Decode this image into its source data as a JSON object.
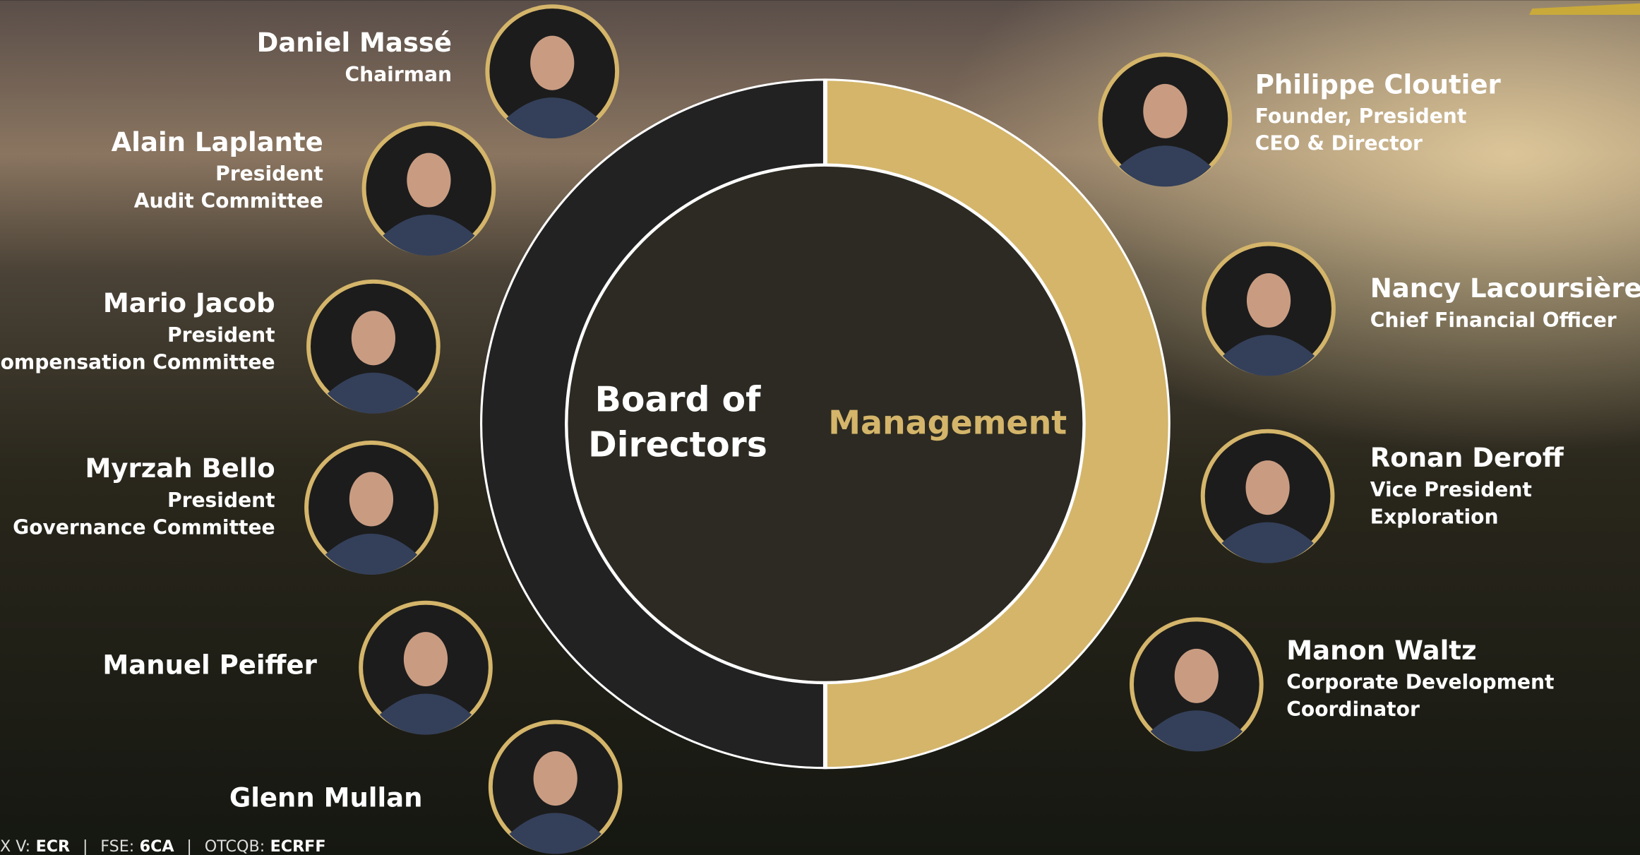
{
  "center": {
    "left": [
      "Board of",
      "Directors"
    ],
    "right": "Management"
  },
  "board": [
    {
      "name": "Daniel Massé",
      "titles": [
        "Chairman"
      ]
    },
    {
      "name": "Alain Laplante",
      "titles": [
        "President",
        "Audit Committee"
      ]
    },
    {
      "name": "Mario Jacob",
      "titles": [
        "President",
        "Compensation Committee"
      ]
    },
    {
      "name": "Myrzah Bello",
      "titles": [
        "President",
        "Governance Committee"
      ]
    },
    {
      "name": "Manuel Peiffer",
      "titles": []
    },
    {
      "name": "Glenn Mullan",
      "titles": []
    }
  ],
  "management": [
    {
      "name": "Philippe Cloutier",
      "titles": [
        "Founder, President",
        "CEO & Director"
      ]
    },
    {
      "name": "Nancy Lacoursière",
      "titles": [
        "Chief Financial Officer"
      ]
    },
    {
      "name": "Ronan Deroff",
      "titles": [
        "Vice President",
        " Exploration"
      ]
    },
    {
      "name": "Manon Waltz",
      "titles": [
        "Corporate Development",
        "Coordinator"
      ]
    }
  ],
  "footer": [
    {
      "label": "X V:",
      "value": "ECR"
    },
    {
      "label": "FSE:",
      "value": "6CA"
    },
    {
      "label": "OTCQB:",
      "value": "ECRFF"
    }
  ]
}
